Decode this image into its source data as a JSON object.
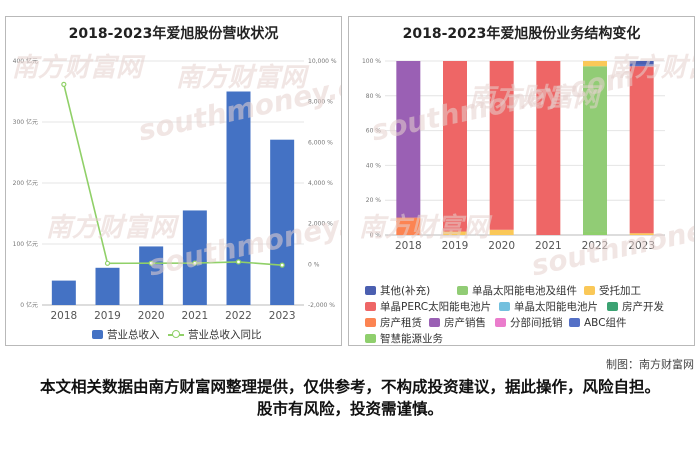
{
  "watermark": {
    "cn": "南方财富网",
    "en": "southmoney.com"
  },
  "chart_data": [
    {
      "type": "bar",
      "title": "2018-2023年爱旭股份营收状况",
      "categories": [
        "2018",
        "2019",
        "2020",
        "2021",
        "2022",
        "2023"
      ],
      "y_ticks": [
        "0 亿元",
        "100 亿元",
        "200 亿元",
        "300 亿元",
        "400 亿元"
      ],
      "y2_ticks": [
        "-2,000 %",
        "0 %",
        "2,000 %",
        "4,000 %",
        "6,000 %",
        "8,000 %",
        "10,000 %"
      ],
      "ylim": [
        0,
        400
      ],
      "y2lim": [
        -2000,
        10000
      ],
      "series": [
        {
          "name": "营业总收入",
          "type": "bar",
          "color": "#4472c4",
          "values": [
            40,
            61,
            96,
            155,
            350,
            271
          ]
        },
        {
          "name": "营业总收入同比",
          "type": "line",
          "color": "#90d068",
          "values": [
            8850,
            50,
            57,
            61,
            120,
            -40
          ]
        }
      ],
      "legend_position": "bottom"
    },
    {
      "type": "bar",
      "stacked": true,
      "title": "2018-2023年爱旭股份业务结构变化",
      "categories": [
        "2018",
        "2019",
        "2020",
        "2021",
        "2022",
        "2023"
      ],
      "y_ticks": [
        "0 %",
        "20 %",
        "40 %",
        "60 %",
        "80 %",
        "100 %"
      ],
      "ylim": [
        0,
        100
      ],
      "series": [
        {
          "name": "其他(补充)",
          "color": "#4b5fb0",
          "values": [
            0,
            0,
            0,
            0,
            0,
            2
          ]
        },
        {
          "name": "单晶太阳能电池及组件",
          "color": "#91cc75",
          "values": [
            0,
            0,
            0,
            0,
            95,
            0
          ]
        },
        {
          "name": "受托加工",
          "color": "#fac858",
          "values": [
            0,
            2,
            3,
            0,
            3,
            1
          ]
        },
        {
          "name": "单晶PERC太阳能电池片",
          "color": "#ee6666",
          "values": [
            0,
            98,
            97,
            100,
            0,
            96
          ]
        },
        {
          "name": "单晶太阳能电池片",
          "color": "#73c0de",
          "values": [
            0,
            0,
            0,
            0,
            0,
            0
          ]
        },
        {
          "name": "房产开发",
          "color": "#3ba272",
          "values": [
            0,
            0,
            0,
            0,
            0,
            0
          ]
        },
        {
          "name": "房产租赁",
          "color": "#fc8452",
          "values": [
            10,
            0,
            0,
            0,
            0,
            0
          ]
        },
        {
          "name": "房产销售",
          "color": "#9a60b4",
          "values": [
            90,
            0,
            0,
            0,
            0,
            0
          ]
        },
        {
          "name": "分部间抵销",
          "color": "#ea7ccc",
          "values": [
            0,
            0,
            0,
            0,
            0,
            0
          ]
        },
        {
          "name": "ABC组件",
          "color": "#5470c6",
          "values": [
            0,
            0,
            0,
            0,
            0,
            1
          ]
        },
        {
          "name": "智慧能源业务",
          "color": "#8fcf6d",
          "values": [
            0,
            0,
            0,
            0,
            2,
            0
          ]
        }
      ],
      "legend_position": "bottom"
    }
  ],
  "credit": "制图：南方财富网",
  "disclaimer": "本文相关数据由南方财富网整理提供，仅供参考，不构成投资建议，据此操作，风险自担。股市有风险，投资需谨慎。"
}
